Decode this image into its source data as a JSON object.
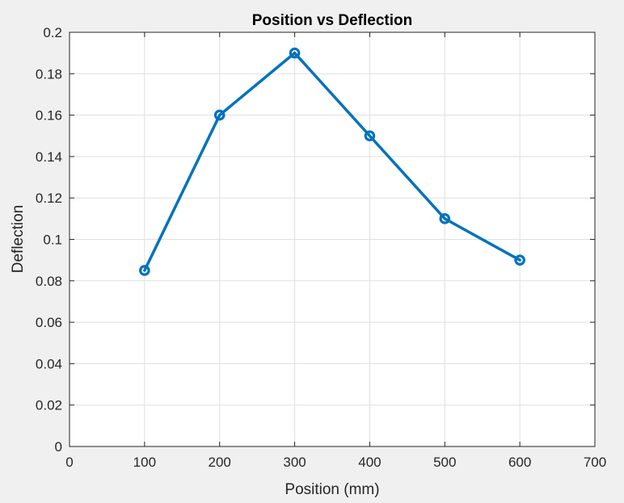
{
  "chart_data": {
    "type": "line",
    "title": "Position vs Deflection",
    "xlabel": "Position (mm)",
    "ylabel": "Deflection",
    "xlim": [
      0,
      700
    ],
    "ylim": [
      0,
      0.2
    ],
    "xticks": [
      0,
      100,
      200,
      300,
      400,
      500,
      600,
      700
    ],
    "xtick_labels": [
      "0",
      "100",
      "200",
      "300",
      "400",
      "500",
      "600",
      "700"
    ],
    "yticks": [
      0,
      0.02,
      0.04,
      0.06,
      0.08,
      0.1,
      0.12,
      0.14,
      0.16,
      0.18,
      0.2
    ],
    "ytick_labels": [
      "0",
      "0.02",
      "0.04",
      "0.06",
      "0.08",
      "0.1",
      "0.12",
      "0.14",
      "0.16",
      "0.18",
      "0.2"
    ],
    "grid": true,
    "series": [
      {
        "x": [
          100,
          200,
          300,
          400,
          500,
          600
        ],
        "y": [
          0.085,
          0.16,
          0.19,
          0.15,
          0.11,
          0.09
        ],
        "marker": "circle",
        "color": "#0072bd"
      }
    ]
  }
}
